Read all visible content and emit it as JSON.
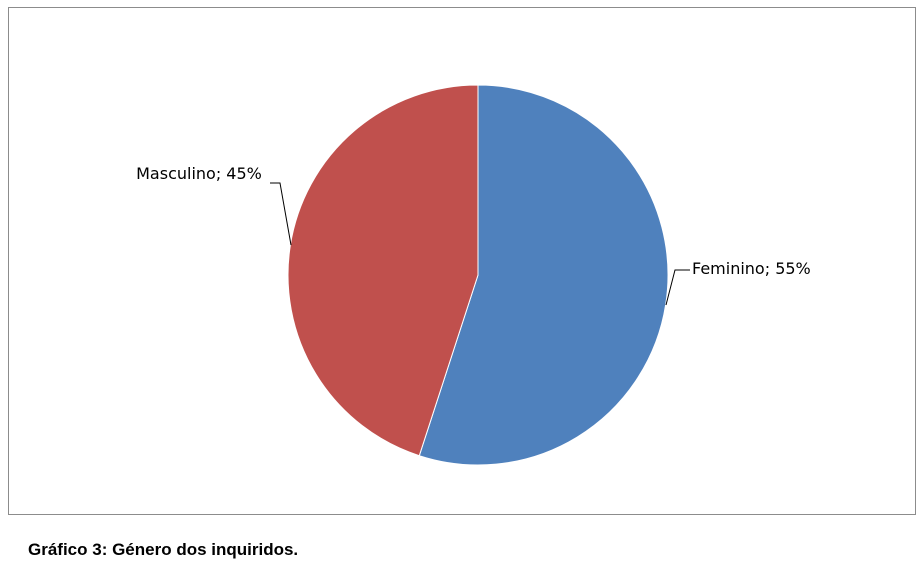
{
  "chart_data": {
    "type": "pie",
    "values": [
      55,
      45
    ],
    "value_labels": [
      "Feminino; 55%",
      "Masculino; 45%"
    ],
    "colors": [
      "#4f81bd",
      "#c0504d"
    ],
    "caption": "Gráfico 3: Género dos inquiridos."
  }
}
